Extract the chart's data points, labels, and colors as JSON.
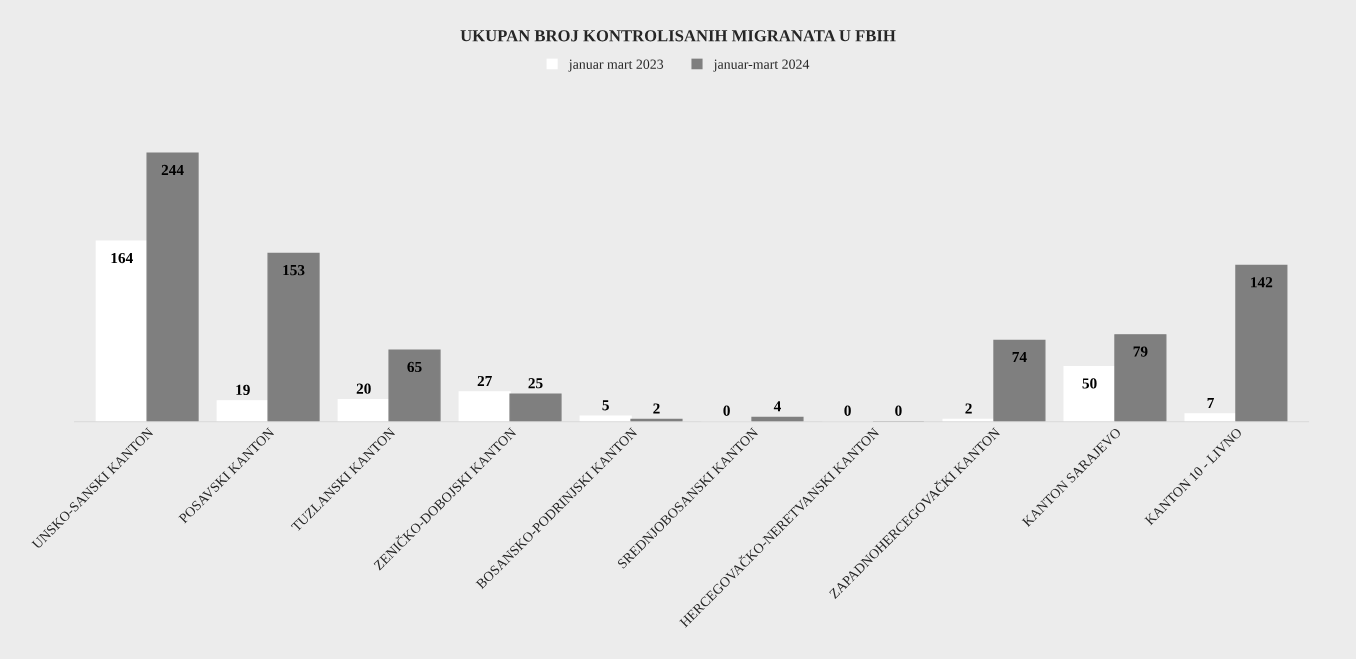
{
  "chart_data": {
    "type": "bar",
    "title": "UKUPAN BROJ KONTROLISANIH MIGRANATA U FBIH",
    "categories": [
      "UNSKO-SANSKI KANTON",
      "POSAVSKI KANTON",
      "TUZLANSKI KANTON",
      "ZENIČKO-DOBOJSKI KANTON",
      "BOSANSKO-PODRINJSKI KANTON",
      "SREDNJOBOSANSKI KANTON",
      "HERCEGOVAČKO-NERETVANSKI KANTON",
      "ZAPADNOHERCEGOVAČKI KANTON",
      "KANTON SARAJEVO",
      "KANTON 10 - LIVNO"
    ],
    "series": [
      {
        "name": "januar mart 2023",
        "color": "#ffffff",
        "values": [
          164,
          19,
          20,
          27,
          5,
          0,
          0,
          2,
          50,
          7
        ]
      },
      {
        "name": "januar-mart 2024",
        "color": "#7f7f7f",
        "values": [
          244,
          153,
          65,
          25,
          2,
          4,
          0,
          74,
          79,
          142
        ]
      }
    ],
    "data_labels": true,
    "legend": "top",
    "tick_labels": "x",
    "grid": false
  }
}
